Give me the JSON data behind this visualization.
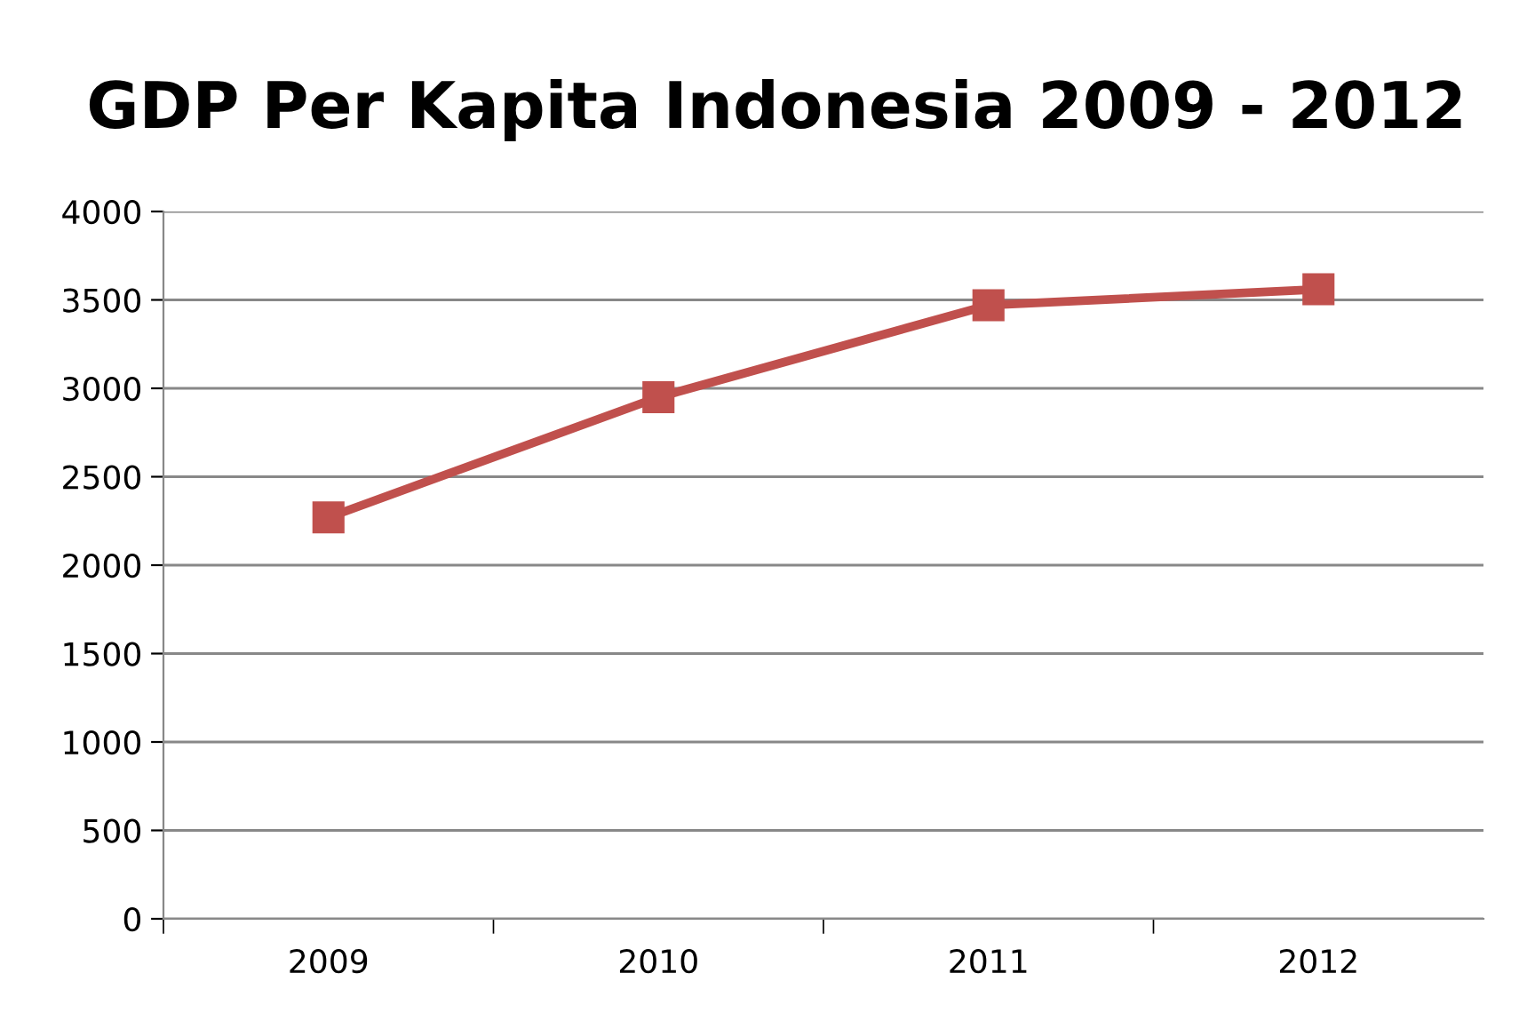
{
  "chart_data": {
    "type": "line",
    "title": "GDP Per Kapita Indonesia 2009 - 2012",
    "categories": [
      "2009",
      "2010",
      "2011",
      "2012"
    ],
    "series": [
      {
        "color": "#c0504d",
        "values": [
          2270,
          2950,
          3470,
          3560
        ]
      }
    ],
    "ylim": [
      0,
      4000
    ],
    "yticks": [
      0,
      500,
      1000,
      1500,
      2000,
      2500,
      3000,
      3500,
      4000
    ],
    "grid": "y",
    "marker": "square",
    "line_style": "solid",
    "legend": false
  }
}
